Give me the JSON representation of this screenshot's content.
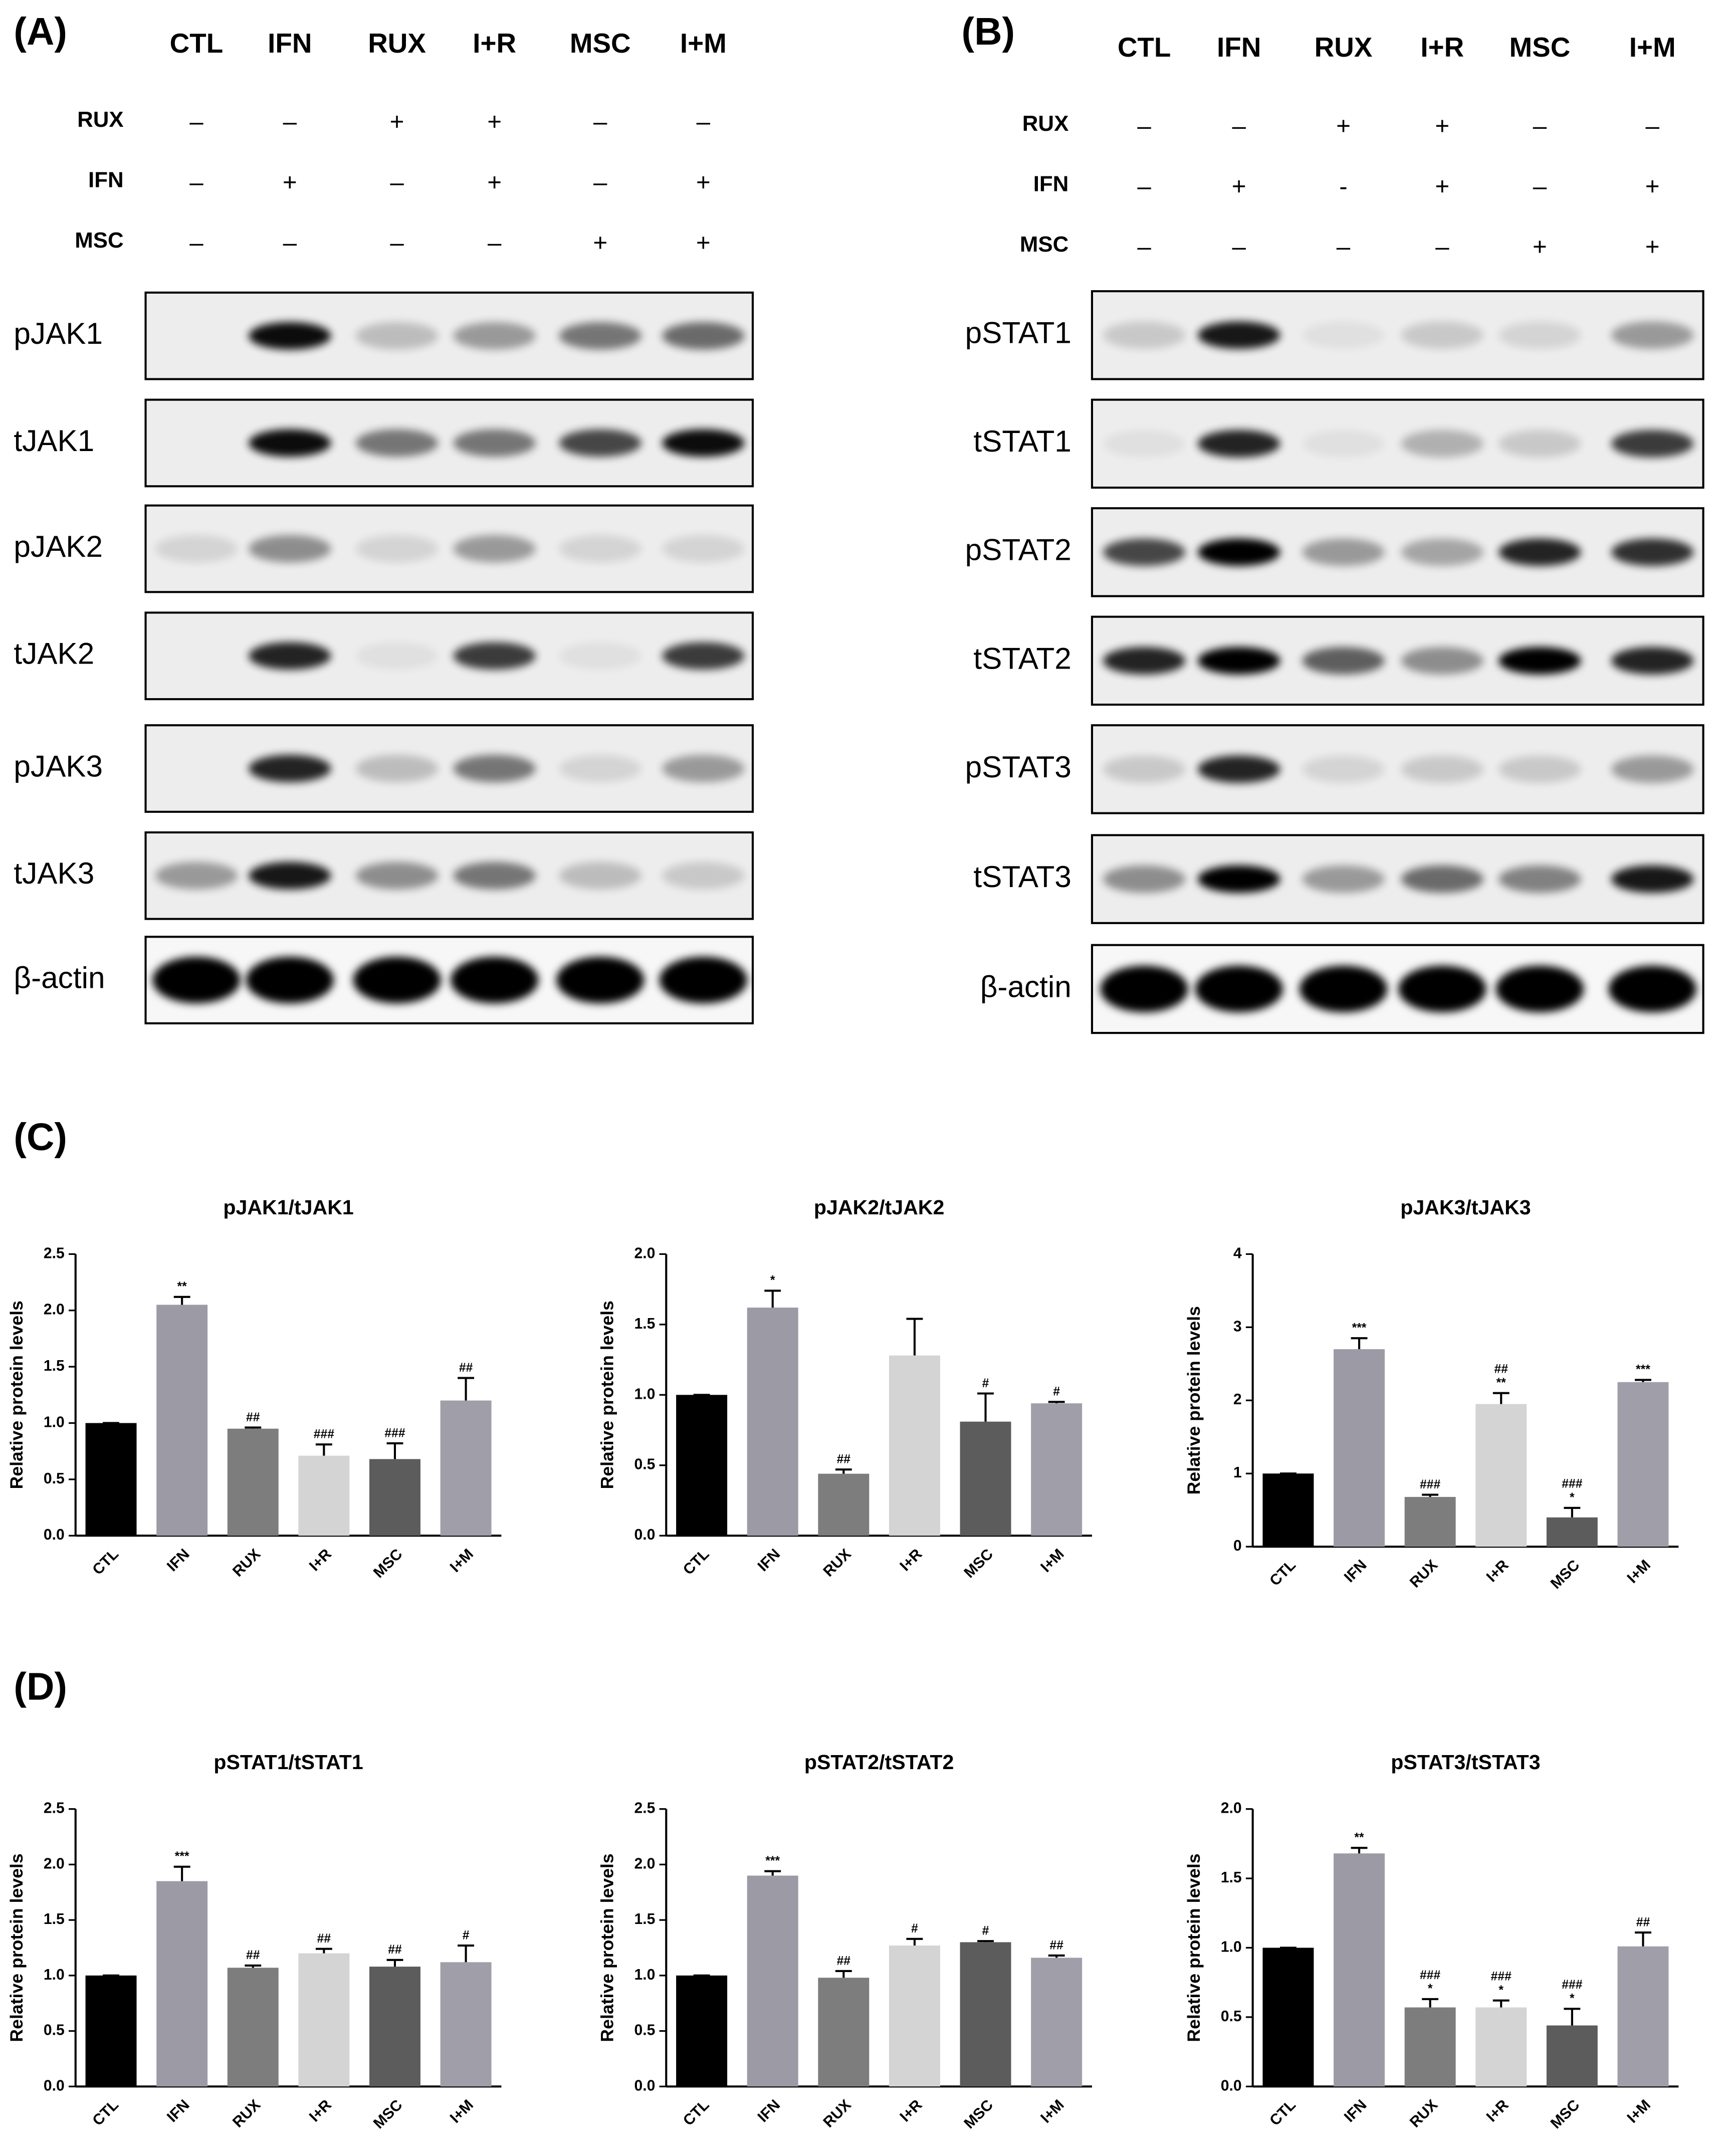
{
  "panels": [
    {
      "label": "(A)",
      "lanes": [
        "CTL",
        "IFN",
        "RUX",
        "I+R",
        "MSC",
        "I+M"
      ],
      "treatments": [
        {
          "name": "RUX",
          "marks": [
            "–",
            "–",
            "+",
            "+",
            "–",
            "–"
          ]
        },
        {
          "name": "IFN",
          "marks": [
            "–",
            "+",
            "–",
            "+",
            "–",
            "+"
          ]
        },
        {
          "name": "MSC",
          "marks": [
            "–",
            "–",
            "–",
            "–",
            "+",
            "+"
          ]
        }
      ],
      "blots": [
        "pJAK1",
        "tJAK1",
        "pJAK2",
        "tJAK2",
        "pJAK3",
        "tJAK3",
        "β-actin"
      ]
    },
    {
      "label": "(B)",
      "lanes": [
        "CTL",
        "IFN",
        "RUX",
        "I+R",
        "MSC",
        "I+M"
      ],
      "treatments": [
        {
          "name": "RUX",
          "marks": [
            "–",
            "–",
            "+",
            "+",
            "–",
            "–"
          ]
        },
        {
          "name": "IFN",
          "marks": [
            "–",
            "+",
            "-",
            "+",
            "–",
            "+"
          ]
        },
        {
          "name": "MSC",
          "marks": [
            "–",
            "–",
            "–",
            "–",
            "+",
            "+"
          ]
        }
      ],
      "blots": [
        "pSTAT1",
        "tSTAT1",
        "pSTAT2",
        "tSTAT2",
        "pSTAT3",
        "tSTAT3",
        "β-actin"
      ]
    }
  ],
  "section_labels": [
    "(C)",
    "(D)"
  ],
  "chart_data": [
    {
      "type": "bar",
      "title": "pJAK1/tJAK1",
      "ylabel": "Relative protein levels",
      "categories": [
        "CTL",
        "IFN",
        "RUX",
        "I+R",
        "MSC",
        "I+M"
      ],
      "values": [
        1.0,
        2.05,
        0.95,
        0.71,
        0.68,
        1.2
      ],
      "errors": [
        0,
        0.07,
        0.01,
        0.1,
        0.14,
        0.2
      ],
      "colors": [
        "#000000",
        "#9c9ba5",
        "#7d7d7d",
        "#d4d4d4",
        "#5c5c5c",
        "#a09fa9"
      ],
      "annotations": [
        null,
        [
          "**"
        ],
        [
          "##"
        ],
        [
          "###"
        ],
        [
          "###"
        ],
        [
          "##"
        ]
      ],
      "ylim": [
        0,
        2.5
      ],
      "yticks": [
        {
          "value": 0,
          "label": "0.0"
        },
        0.5,
        {
          "value": 1,
          "label": "1.0"
        },
        1.5,
        {
          "value": 2,
          "label": "2.0"
        },
        2.5
      ]
    },
    {
      "type": "bar",
      "title": "pJAK2/tJAK2",
      "ylabel": "Relative protein levels",
      "categories": [
        "CTL",
        "IFN",
        "RUX",
        "I+R",
        "MSC",
        "I+M"
      ],
      "values": [
        1.0,
        1.62,
        0.44,
        1.28,
        0.81,
        0.94
      ],
      "errors": [
        0,
        0.12,
        0.03,
        0.26,
        0.2,
        0.01
      ],
      "colors": [
        "#000000",
        "#9c9ba5",
        "#7d7d7d",
        "#d4d4d4",
        "#5c5c5c",
        "#a09fa9"
      ],
      "annotations": [
        null,
        [
          "*"
        ],
        [
          "##"
        ],
        null,
        [
          "#"
        ],
        [
          "#"
        ]
      ],
      "ylim": [
        0,
        2
      ],
      "yticks": [
        {
          "value": 0,
          "label": "0.0"
        },
        0.5,
        {
          "value": 1,
          "label": "1.0"
        },
        1.5,
        {
          "value": 2,
          "label": "2.0"
        }
      ]
    },
    {
      "type": "bar",
      "title": "pJAK3/tJAK3",
      "ylabel": "Relative protein levels",
      "categories": [
        "CTL",
        "IFN",
        "RUX",
        "I+R",
        "MSC",
        "I+M"
      ],
      "values": [
        1.0,
        2.7,
        0.68,
        1.95,
        0.4,
        2.25
      ],
      "errors": [
        0,
        0.15,
        0.03,
        0.15,
        0.13,
        0.03
      ],
      "colors": [
        "#000000",
        "#9c9ba5",
        "#7d7d7d",
        "#d4d4d4",
        "#5c5c5c",
        "#a09fa9"
      ],
      "annotations": [
        null,
        [
          "***"
        ],
        [
          "###"
        ],
        [
          "##",
          "**"
        ],
        [
          "###",
          "*"
        ],
        [
          "***"
        ]
      ],
      "ylim": [
        0,
        4
      ],
      "yticks": [
        0,
        1,
        2,
        3,
        4
      ]
    },
    {
      "type": "bar",
      "title": "pSTAT1/tSTAT1",
      "ylabel": "Relative protein levels",
      "categories": [
        "CTL",
        "IFN",
        "RUX",
        "I+R",
        "MSC",
        "I+M"
      ],
      "values": [
        1.0,
        1.85,
        1.07,
        1.2,
        1.08,
        1.12
      ],
      "errors": [
        0,
        0.13,
        0.02,
        0.04,
        0.06,
        0.15
      ],
      "colors": [
        "#000000",
        "#9c9ba5",
        "#7d7d7d",
        "#d4d4d4",
        "#5c5c5c",
        "#a09fa9"
      ],
      "annotations": [
        null,
        [
          "***"
        ],
        [
          "##"
        ],
        [
          "##"
        ],
        [
          "##"
        ],
        [
          "#"
        ]
      ],
      "ylim": [
        0,
        2.5
      ],
      "yticks": [
        {
          "value": 0,
          "label": "0.0"
        },
        0.5,
        {
          "value": 1,
          "label": "1.0"
        },
        1.5,
        {
          "value": 2,
          "label": "2.0"
        },
        2.5
      ]
    },
    {
      "type": "bar",
      "title": "pSTAT2/tSTAT2",
      "ylabel": "Relative protein levels",
      "categories": [
        "CTL",
        "IFN",
        "RUX",
        "I+R",
        "MSC",
        "I+M"
      ],
      "values": [
        1.0,
        1.9,
        0.98,
        1.27,
        1.3,
        1.16
      ],
      "errors": [
        0,
        0.04,
        0.06,
        0.06,
        0.01,
        0.02
      ],
      "colors": [
        "#000000",
        "#9c9ba5",
        "#7d7d7d",
        "#d4d4d4",
        "#5c5c5c",
        "#a09fa9"
      ],
      "annotations": [
        null,
        [
          "***"
        ],
        [
          "##"
        ],
        [
          "#"
        ],
        [
          "#"
        ],
        [
          "##"
        ]
      ],
      "ylim": [
        0,
        2.5
      ],
      "yticks": [
        {
          "value": 0,
          "label": "0.0"
        },
        0.5,
        {
          "value": 1,
          "label": "1.0"
        },
        1.5,
        {
          "value": 2,
          "label": "2.0"
        },
        2.5
      ]
    },
    {
      "type": "bar",
      "title": "pSTAT3/tSTAT3",
      "ylabel": "Relative protein levels",
      "categories": [
        "CTL",
        "IFN",
        "RUX",
        "I+R",
        "MSC",
        "I+M"
      ],
      "values": [
        1.0,
        1.68,
        0.57,
        0.57,
        0.44,
        1.01
      ],
      "errors": [
        0,
        0.04,
        0.06,
        0.05,
        0.12,
        0.1
      ],
      "colors": [
        "#000000",
        "#9c9ba5",
        "#7d7d7d",
        "#d4d4d4",
        "#5c5c5c",
        "#a09fa9"
      ],
      "annotations": [
        null,
        [
          "**"
        ],
        [
          "###",
          "*"
        ],
        [
          "###",
          "*"
        ],
        [
          "###",
          "*"
        ],
        [
          "##"
        ]
      ],
      "ylim": [
        0,
        2
      ],
      "yticks": [
        {
          "value": 0,
          "label": "0.0"
        },
        0.5,
        {
          "value": 1,
          "label": "1.0"
        },
        1.5,
        {
          "value": 2,
          "label": "2.0"
        }
      ]
    }
  ]
}
